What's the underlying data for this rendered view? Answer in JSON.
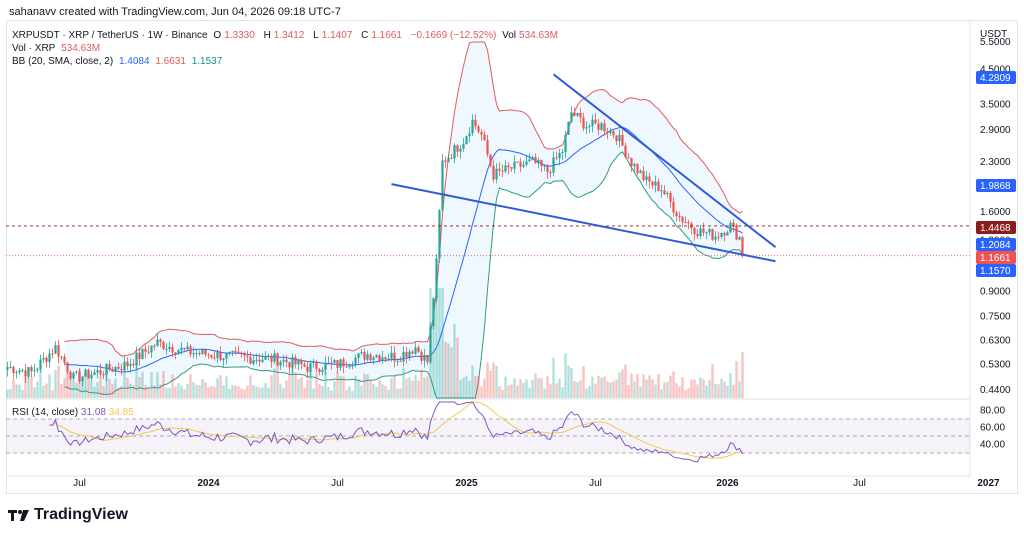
{
  "header": {
    "text": "sahanavv created with TradingView.com, Jun 04, 2026 09:18 UTC-7"
  },
  "legend": {
    "symbol": "XRPUSDT · XRP / TetherUS · 1W · Binance",
    "o_label": "O",
    "o": "1.3330",
    "h_label": "H",
    "h": "1.3412",
    "l_label": "L",
    "l": "1.1407",
    "c_label": "C",
    "c": "1.1661",
    "change": "−0.1669 (−12.52%)",
    "vol_label": "Vol",
    "vol": "534.63M",
    "vol_line_label": "Vol · XRP",
    "vol_line_value": "534.63M",
    "bb_label": "BB (20, SMA, close, 2)",
    "bb_basis": "1.4084",
    "bb_upper": "1.6631",
    "bb_lower": "1.1537"
  },
  "axis_currency": "USDT",
  "rsi_label": "RSI (14, close)",
  "rsi_value": "31.08",
  "rsi_ma_value": "34.85",
  "logo": {
    "text": "TradingView"
  },
  "colors": {
    "up": "#26a69a",
    "down": "#ef5350",
    "trendline": "#2e5bd8",
    "bb_upper": "#e05b5b",
    "bb_lower": "#2e9d7e",
    "bb_basis": "#2962ff",
    "rsi": "#7e57c2",
    "rsi_ma": "#f2c94c"
  },
  "chart_data": [
    {
      "type": "candlestick",
      "title": "",
      "scale": "log",
      "y_ticks": [
        0.44,
        0.53,
        0.63,
        0.75,
        0.9,
        1.3,
        1.6,
        1.9,
        2.3,
        2.9,
        3.5,
        4.5,
        5.5
      ],
      "y_tick_labels": [
        "0.4400",
        "0.5300",
        "0.6300",
        "0.7500",
        "0.9000",
        "1.3000",
        "1.6000",
        "1.9000",
        "2.3000",
        "2.9000",
        "3.5000",
        "4.5000",
        "5.5000"
      ],
      "x_tick_labels": [
        "Jul",
        "2024",
        "Jul",
        "2025",
        "Jul",
        "2026",
        "Jul",
        "2027"
      ],
      "price_labels": [
        {
          "value": "4.2809",
          "color": "#2962ff"
        },
        {
          "value": "1.9868",
          "color": "#2962ff"
        },
        {
          "value": "1.4468",
          "color": "#8b1c1c"
        },
        {
          "value": "1.2084",
          "color": "#2962ff"
        },
        {
          "value": "1.1661",
          "color": "#ef5350"
        },
        {
          "value": "1.1570",
          "color": "#2962ff"
        }
      ],
      "anchors": [
        {
          "t": 0,
          "p": 0.52
        },
        {
          "t": 8,
          "p": 0.5
        },
        {
          "t": 16,
          "p": 0.6
        },
        {
          "t": 22,
          "p": 0.48
        },
        {
          "t": 30,
          "p": 0.5
        },
        {
          "t": 40,
          "p": 0.53
        },
        {
          "t": 50,
          "p": 0.62
        },
        {
          "t": 60,
          "p": 0.58
        },
        {
          "t": 75,
          "p": 0.56
        },
        {
          "t": 90,
          "p": 0.55
        },
        {
          "t": 100,
          "p": 0.52
        },
        {
          "t": 110,
          "p": 0.53
        },
        {
          "t": 120,
          "p": 0.57
        },
        {
          "t": 130,
          "p": 0.56
        },
        {
          "t": 136,
          "p": 0.6
        },
        {
          "t": 140,
          "p": 0.54
        },
        {
          "t": 143,
          "p": 1.1
        },
        {
          "t": 145,
          "p": 2.3
        },
        {
          "t": 147,
          "p": 2.4
        },
        {
          "t": 152,
          "p": 2.7
        },
        {
          "t": 155,
          "p": 3.1
        },
        {
          "t": 158,
          "p": 2.8
        },
        {
          "t": 162,
          "p": 2.1
        },
        {
          "t": 168,
          "p": 2.2
        },
        {
          "t": 175,
          "p": 2.3
        },
        {
          "t": 180,
          "p": 2.15
        },
        {
          "t": 185,
          "p": 2.5
        },
        {
          "t": 188,
          "p": 3.3
        },
        {
          "t": 193,
          "p": 3.0
        },
        {
          "t": 198,
          "p": 3.0
        },
        {
          "t": 203,
          "p": 2.8
        },
        {
          "t": 208,
          "p": 2.3
        },
        {
          "t": 213,
          "p": 2.0
        },
        {
          "t": 218,
          "p": 1.9
        },
        {
          "t": 224,
          "p": 1.55
        },
        {
          "t": 230,
          "p": 1.4
        },
        {
          "t": 236,
          "p": 1.35
        },
        {
          "t": 241,
          "p": 1.45
        },
        {
          "t": 244,
          "p": 1.33
        },
        {
          "t": 245,
          "p": 1.1661
        }
      ],
      "trendlines": [
        {
          "t1": 182,
          "p1": 4.35,
          "t2": 256,
          "p2": 1.24
        },
        {
          "t1": 128,
          "p1": 1.96,
          "t2": 256,
          "p2": 1.12
        }
      ],
      "dashed_level": 1.4468,
      "rsi_panel": {
        "y_ticks": [
          40,
          60,
          80
        ],
        "y_tick_labels": [
          "40.00",
          "60.00",
          "80.00"
        ],
        "bands": [
          30,
          70
        ]
      }
    }
  ]
}
